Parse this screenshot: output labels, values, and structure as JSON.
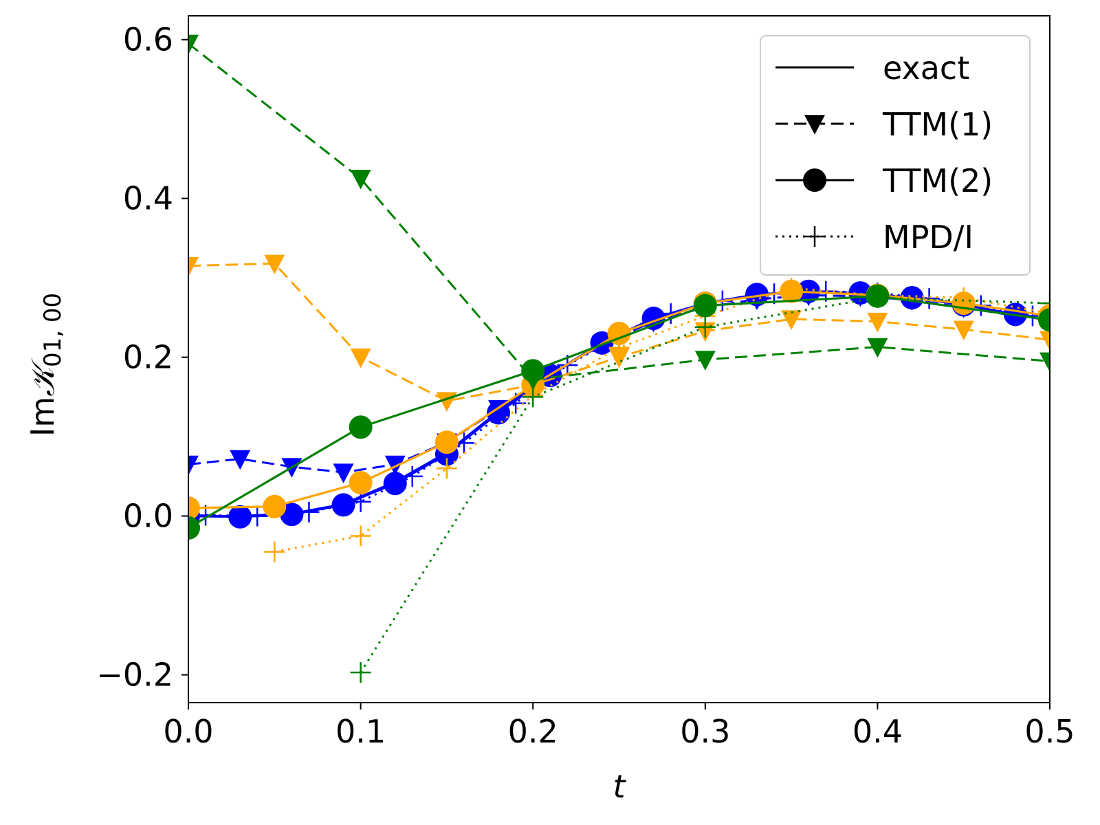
{
  "chart_data": {
    "type": "line",
    "title": "",
    "xlabel": "t",
    "ylabel_prefix": "Im",
    "ylabel_symbol": "𝒦",
    "ylabel_subscript": "01, 00",
    "xlim": [
      0.0,
      0.5
    ],
    "ylim": [
      -0.235,
      0.63
    ],
    "x_ticks": [
      0.0,
      0.1,
      0.2,
      0.3,
      0.4,
      0.5
    ],
    "x_tick_labels": [
      "0.0",
      "0.1",
      "0.2",
      "0.3",
      "0.4",
      "0.5"
    ],
    "y_ticks": [
      -0.2,
      0.0,
      0.2,
      0.4,
      0.6
    ],
    "y_tick_labels": [
      "−0.2",
      "0.0",
      "0.2",
      "0.4",
      "0.6"
    ],
    "grid": false,
    "legend_position": "top-right",
    "legend": [
      {
        "label": "exact",
        "line": "solid",
        "marker": "none"
      },
      {
        "label": "TTM(1)",
        "line": "dashed",
        "marker": "triangle-down"
      },
      {
        "label": "TTM(2)",
        "line": "solid",
        "marker": "circle"
      },
      {
        "label": "MPD/I",
        "line": "dotted",
        "marker": "plus"
      }
    ],
    "colors": {
      "blue": "#0000ff",
      "orange": "#ffa500",
      "green": "#008000",
      "black": "#000000"
    },
    "series": [
      {
        "name": "exact",
        "color": "blue",
        "line": "solid",
        "marker": "none",
        "x": [
          0.0,
          0.03,
          0.06,
          0.09,
          0.12,
          0.15,
          0.18,
          0.21,
          0.24,
          0.27,
          0.3,
          0.33,
          0.36,
          0.39,
          0.42,
          0.45,
          0.48,
          0.5
        ],
        "y": [
          0.0,
          0.0,
          0.003,
          0.015,
          0.043,
          0.08,
          0.132,
          0.178,
          0.218,
          0.249,
          0.268,
          0.279,
          0.283,
          0.281,
          0.275,
          0.266,
          0.254,
          0.246
        ]
      },
      {
        "name": "TTM(1) blue",
        "color": "blue",
        "line": "dashed",
        "marker": "triangle-down",
        "x": [
          0.0,
          0.03,
          0.06,
          0.09,
          0.12,
          0.15,
          0.18,
          0.21,
          0.24,
          0.27,
          0.3,
          0.33,
          0.36,
          0.39,
          0.42,
          0.45,
          0.48
        ],
        "y": [
          0.065,
          0.072,
          0.062,
          0.055,
          0.065,
          0.093,
          0.135,
          0.178,
          0.216,
          0.245,
          0.263,
          0.273,
          0.278,
          0.277,
          0.272,
          0.263,
          0.252
        ]
      },
      {
        "name": "TTM(2) blue",
        "color": "blue",
        "line": "solid",
        "marker": "circle",
        "x": [
          0.0,
          0.03,
          0.06,
          0.09,
          0.12,
          0.15,
          0.18,
          0.21,
          0.24,
          0.27,
          0.3,
          0.33,
          0.36,
          0.39,
          0.42,
          0.45,
          0.48
        ],
        "y": [
          0.0,
          -0.001,
          0.002,
          0.014,
          0.041,
          0.078,
          0.13,
          0.177,
          0.218,
          0.249,
          0.268,
          0.279,
          0.283,
          0.281,
          0.275,
          0.266,
          0.254
        ]
      },
      {
        "name": "MPD/I blue",
        "color": "blue",
        "line": "dotted",
        "marker": "plus",
        "x": [
          0.01,
          0.04,
          0.07,
          0.1,
          0.13,
          0.16,
          0.19,
          0.22,
          0.25,
          0.28,
          0.31,
          0.34,
          0.37,
          0.4,
          0.43,
          0.46,
          0.49
        ],
        "y": [
          0.001,
          0.0,
          0.005,
          0.018,
          0.05,
          0.092,
          0.142,
          0.19,
          0.226,
          0.255,
          0.271,
          0.28,
          0.283,
          0.281,
          0.274,
          0.265,
          0.252
        ]
      },
      {
        "name": "TTM(1) orange",
        "color": "orange",
        "line": "dashed",
        "marker": "triangle-down",
        "x": [
          0.0,
          0.05,
          0.1,
          0.15,
          0.2,
          0.25,
          0.3,
          0.35,
          0.4,
          0.45,
          0.5
        ],
        "y": [
          0.315,
          0.318,
          0.2,
          0.145,
          0.165,
          0.2,
          0.233,
          0.248,
          0.245,
          0.235,
          0.222
        ]
      },
      {
        "name": "TTM(2) orange",
        "color": "orange",
        "line": "solid",
        "marker": "circle",
        "x": [
          0.0,
          0.05,
          0.1,
          0.15,
          0.2,
          0.25,
          0.3,
          0.35,
          0.4,
          0.45,
          0.5
        ],
        "y": [
          0.01,
          0.012,
          0.042,
          0.093,
          0.165,
          0.23,
          0.268,
          0.283,
          0.278,
          0.268,
          0.252
        ]
      },
      {
        "name": "MPD/I orange",
        "color": "orange",
        "line": "dotted",
        "marker": "plus",
        "x": [
          0.05,
          0.1,
          0.15,
          0.2,
          0.25,
          0.3,
          0.35,
          0.4,
          0.45,
          0.5
        ],
        "y": [
          -0.045,
          -0.025,
          0.06,
          0.152,
          0.212,
          0.252,
          0.287,
          0.278,
          0.275,
          0.255
        ]
      },
      {
        "name": "TTM(1) green",
        "color": "green",
        "line": "dashed",
        "marker": "triangle-down",
        "x": [
          0.0,
          0.1,
          0.2,
          0.3,
          0.4,
          0.5
        ],
        "y": [
          0.595,
          0.425,
          0.172,
          0.197,
          0.213,
          0.195
        ]
      },
      {
        "name": "TTM(2) green",
        "color": "green",
        "line": "solid",
        "marker": "circle",
        "x": [
          0.0,
          0.1,
          0.2,
          0.3,
          0.4,
          0.5
        ],
        "y": [
          -0.015,
          0.112,
          0.183,
          0.265,
          0.277,
          0.247
        ]
      },
      {
        "name": "MPD/I green",
        "color": "green",
        "line": "dotted",
        "marker": "plus",
        "x": [
          0.1,
          0.2,
          0.3,
          0.4,
          0.5
        ],
        "y": [
          -0.197,
          0.15,
          0.238,
          0.275,
          0.268
        ]
      }
    ]
  }
}
